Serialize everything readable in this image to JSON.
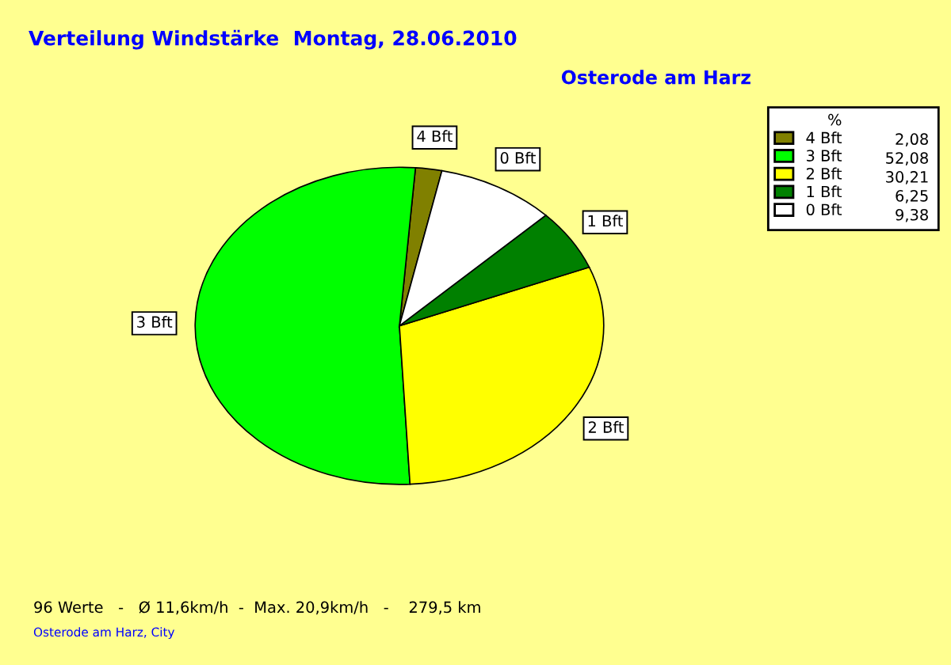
{
  "chart_data": {
    "type": "pie",
    "title": "Verteilung Windstärke  Montag, 28.06.2010",
    "subtitle": "Osterode am Harz",
    "categories": [
      "4 Bft",
      "3 Bft",
      "2 Bft",
      "1 Bft",
      "0 Bft"
    ],
    "values": [
      2.08,
      52.08,
      30.21,
      6.25,
      9.38
    ],
    "value_labels": [
      "2,08",
      "52,08",
      "30,21",
      "6,25",
      "9,38"
    ],
    "colors": [
      "#808000",
      "#00ff00",
      "#ffff00",
      "#008000",
      "#ffffff"
    ],
    "legend": "top right",
    "legend_title": "%",
    "annotations": [
      "96 Werte   -   Ø 11,6km/h  -  Max. 20,9km/h   -    279,5 km",
      "Osterode am Harz, City"
    ]
  }
}
